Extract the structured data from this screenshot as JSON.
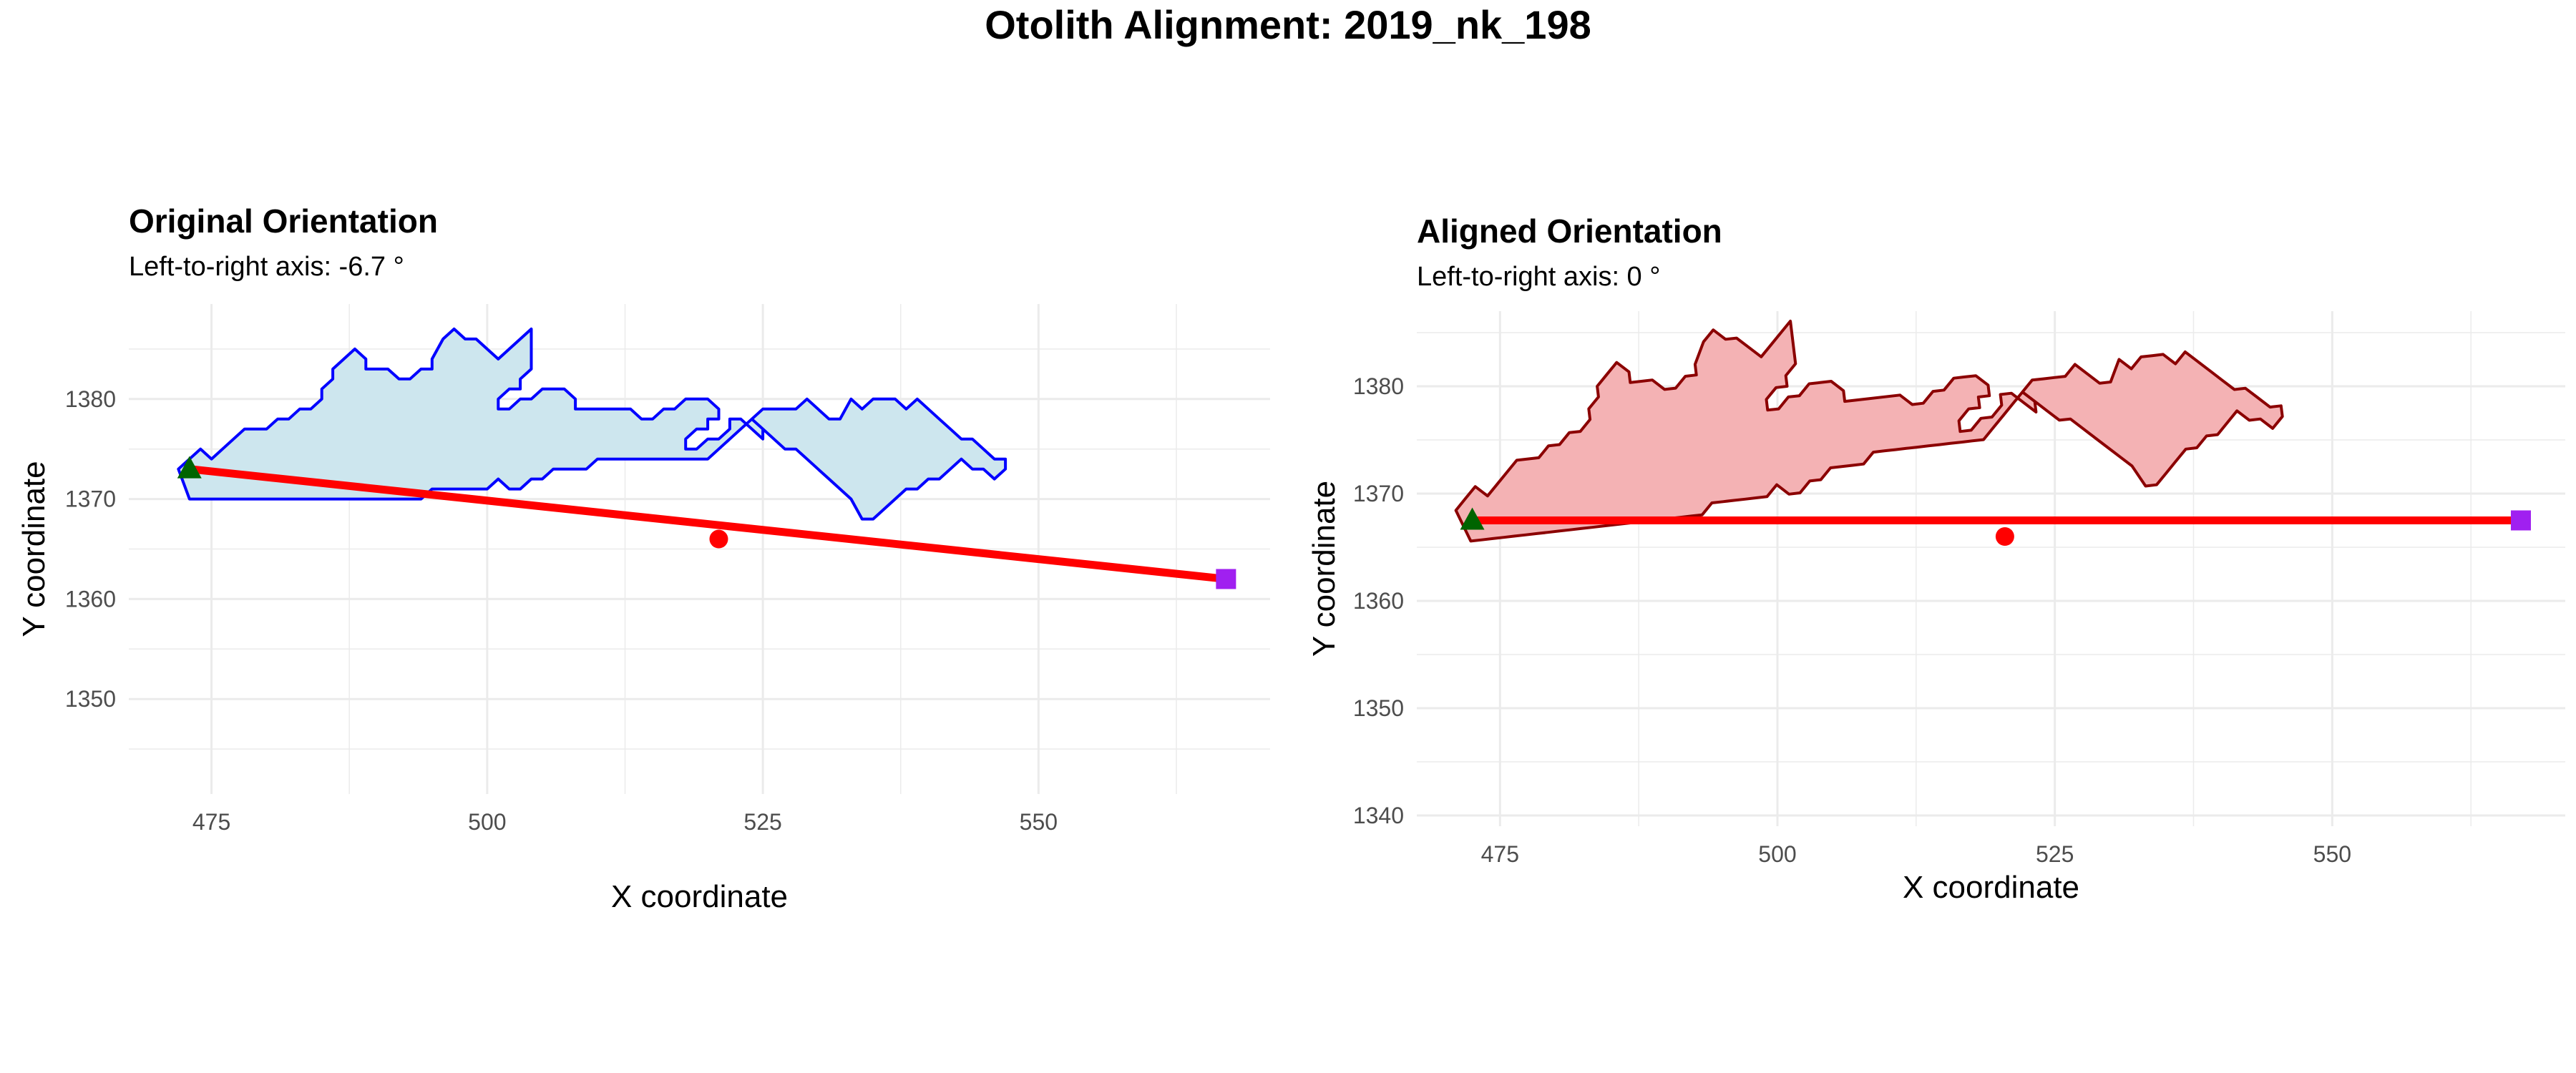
{
  "page": {
    "title": "Otolith Alignment: 2019_nk_198"
  },
  "colors": {
    "background": "#ffffff",
    "grid": "#ebebeb",
    "original_fill": "#cde6ee",
    "original_outline": "#0000ff",
    "aligned_fill": "#f4b2b4",
    "aligned_outline": "#8b0000",
    "axis_line": "#ff0000",
    "centroid": "#ff0000",
    "left_marker": "#006400",
    "right_marker": "#a020f0"
  },
  "chart_data": [
    {
      "type": "polygon",
      "title": "Original Orientation",
      "subtitle": "Left-to-right axis: -6.7 °",
      "xlabel": "X coordinate",
      "ylabel": "Y coordinate",
      "xlim": [
        467.5,
        571
      ],
      "ylim": [
        1340.5,
        1389.5
      ],
      "xticks": [
        475,
        500,
        525,
        550
      ],
      "yticks": [
        1350,
        1360,
        1370,
        1380
      ],
      "grid": true,
      "outline": [
        [
          472,
          1373
        ],
        [
          473,
          1374
        ],
        [
          474,
          1375
        ],
        [
          475,
          1374
        ],
        [
          476,
          1375
        ],
        [
          477,
          1376
        ],
        [
          478,
          1377
        ],
        [
          480,
          1377
        ],
        [
          481,
          1378
        ],
        [
          482,
          1378
        ],
        [
          483,
          1379
        ],
        [
          484,
          1379
        ],
        [
          485,
          1380
        ],
        [
          485,
          1381
        ],
        [
          486,
          1382
        ],
        [
          486,
          1383
        ],
        [
          487,
          1384
        ],
        [
          488,
          1385
        ],
        [
          489,
          1384
        ],
        [
          489,
          1383
        ],
        [
          490,
          1383
        ],
        [
          491,
          1383
        ],
        [
          492,
          1382
        ],
        [
          493,
          1382
        ],
        [
          494,
          1383
        ],
        [
          495,
          1383
        ],
        [
          495,
          1384
        ],
        [
          496,
          1386
        ],
        [
          497,
          1387
        ],
        [
          498,
          1386
        ],
        [
          499,
          1386
        ],
        [
          500,
          1385
        ],
        [
          501,
          1384
        ],
        [
          502,
          1385
        ],
        [
          503,
          1386
        ],
        [
          504,
          1387
        ],
        [
          504,
          1386
        ],
        [
          504,
          1384
        ],
        [
          504,
          1383
        ],
        [
          503,
          1382
        ],
        [
          503,
          1381
        ],
        [
          502,
          1381
        ],
        [
          501,
          1380
        ],
        [
          501,
          1379
        ],
        [
          502,
          1379
        ],
        [
          503,
          1380
        ],
        [
          504,
          1380
        ],
        [
          505,
          1381
        ],
        [
          506,
          1381
        ],
        [
          507,
          1381
        ],
        [
          508,
          1380
        ],
        [
          508,
          1379
        ],
        [
          510,
          1379
        ],
        [
          513,
          1379
        ],
        [
          514,
          1378
        ],
        [
          515,
          1378
        ],
        [
          516,
          1379
        ],
        [
          517,
          1379
        ],
        [
          518,
          1380
        ],
        [
          519,
          1380
        ],
        [
          520,
          1380
        ],
        [
          521,
          1379
        ],
        [
          521,
          1378
        ],
        [
          520,
          1378
        ],
        [
          520,
          1377
        ],
        [
          519,
          1377
        ],
        [
          518,
          1376
        ],
        [
          518,
          1375
        ],
        [
          519,
          1375
        ],
        [
          520,
          1376
        ],
        [
          521,
          1376
        ],
        [
          522,
          1377
        ],
        [
          522,
          1378
        ],
        [
          523,
          1378
        ],
        [
          524,
          1377
        ],
        [
          525,
          1376
        ],
        [
          525,
          1377
        ],
        [
          524,
          1378
        ],
        [
          525,
          1379
        ],
        [
          526,
          1379
        ],
        [
          527,
          1379
        ],
        [
          528,
          1379
        ],
        [
          529,
          1380
        ],
        [
          530,
          1379
        ],
        [
          531,
          1378
        ],
        [
          532,
          1378
        ],
        [
          533,
          1380
        ],
        [
          534,
          1379
        ],
        [
          535,
          1380
        ],
        [
          536,
          1380
        ],
        [
          537,
          1380
        ],
        [
          538,
          1379
        ],
        [
          539,
          1380
        ],
        [
          540,
          1379
        ],
        [
          541,
          1378
        ],
        [
          542,
          1377
        ],
        [
          543,
          1376
        ],
        [
          544,
          1376
        ],
        [
          545,
          1375
        ],
        [
          546,
          1374
        ],
        [
          547,
          1374
        ],
        [
          547,
          1373
        ],
        [
          546,
          1372
        ],
        [
          545,
          1373
        ],
        [
          544,
          1373
        ],
        [
          543,
          1374
        ],
        [
          542,
          1373
        ],
        [
          541,
          1372
        ],
        [
          540,
          1372
        ],
        [
          539,
          1371
        ],
        [
          538,
          1371
        ],
        [
          537,
          1370
        ],
        [
          536,
          1369
        ],
        [
          535,
          1368
        ],
        [
          534,
          1368
        ],
        [
          533,
          1370
        ],
        [
          532,
          1371
        ],
        [
          531,
          1372
        ],
        [
          530,
          1373
        ],
        [
          529,
          1374
        ],
        [
          528,
          1375
        ],
        [
          527,
          1375
        ],
        [
          526,
          1376
        ],
        [
          525,
          1377
        ],
        [
          524,
          1378
        ],
        [
          523,
          1377
        ],
        [
          522,
          1376
        ],
        [
          521,
          1375
        ],
        [
          520,
          1374
        ],
        [
          519,
          1374
        ],
        [
          518,
          1374
        ],
        [
          517,
          1374
        ],
        [
          516,
          1374
        ],
        [
          515,
          1374
        ],
        [
          514,
          1374
        ],
        [
          513,
          1374
        ],
        [
          512,
          1374
        ],
        [
          511,
          1374
        ],
        [
          510,
          1374
        ],
        [
          509,
          1373
        ],
        [
          508,
          1373
        ],
        [
          507,
          1373
        ],
        [
          506,
          1373
        ],
        [
          505,
          1372
        ],
        [
          504,
          1372
        ],
        [
          503,
          1371
        ],
        [
          502,
          1371
        ],
        [
          501,
          1372
        ],
        [
          500,
          1371
        ],
        [
          499,
          1371
        ],
        [
          498,
          1371
        ],
        [
          497,
          1371
        ],
        [
          496,
          1371
        ],
        [
          495,
          1371
        ],
        [
          494,
          1370
        ],
        [
          493,
          1370
        ],
        [
          492,
          1370
        ],
        [
          491,
          1370
        ],
        [
          490,
          1370
        ],
        [
          489,
          1370
        ],
        [
          488,
          1370
        ],
        [
          487,
          1370
        ],
        [
          486,
          1370
        ],
        [
          485,
          1370
        ],
        [
          484,
          1370
        ],
        [
          483,
          1370
        ],
        [
          482,
          1370
        ],
        [
          481,
          1370
        ],
        [
          480,
          1370
        ],
        [
          479,
          1370
        ],
        [
          478,
          1370
        ],
        [
          477,
          1370
        ],
        [
          476,
          1370
        ],
        [
          475,
          1370
        ],
        [
          474,
          1370
        ],
        [
          473,
          1370
        ],
        [
          472,
          1373
        ]
      ],
      "outline_note": "",
      "start": [
        473,
        1373
      ],
      "end": [
        567,
        1362
      ],
      "centroid": [
        521,
        1366
      ]
    },
    {
      "type": "polygon",
      "title": "Aligned Orientation",
      "subtitle": "Left-to-right axis: 0 °",
      "xlabel": "X coordinate",
      "ylabel": "Y coordinate",
      "xlim": [
        467.5,
        571
      ],
      "ylim": [
        1339,
        1387
      ],
      "xticks": [
        475,
        500,
        525,
        550
      ],
      "yticks": [
        1340,
        1350,
        1360,
        1370,
        1380
      ],
      "grid": true,
      "outline": [],
      "start": [
        472.5,
        1367.5
      ],
      "end": [
        567,
        1367.5
      ],
      "centroid": [
        520.5,
        1366
      ]
    }
  ]
}
